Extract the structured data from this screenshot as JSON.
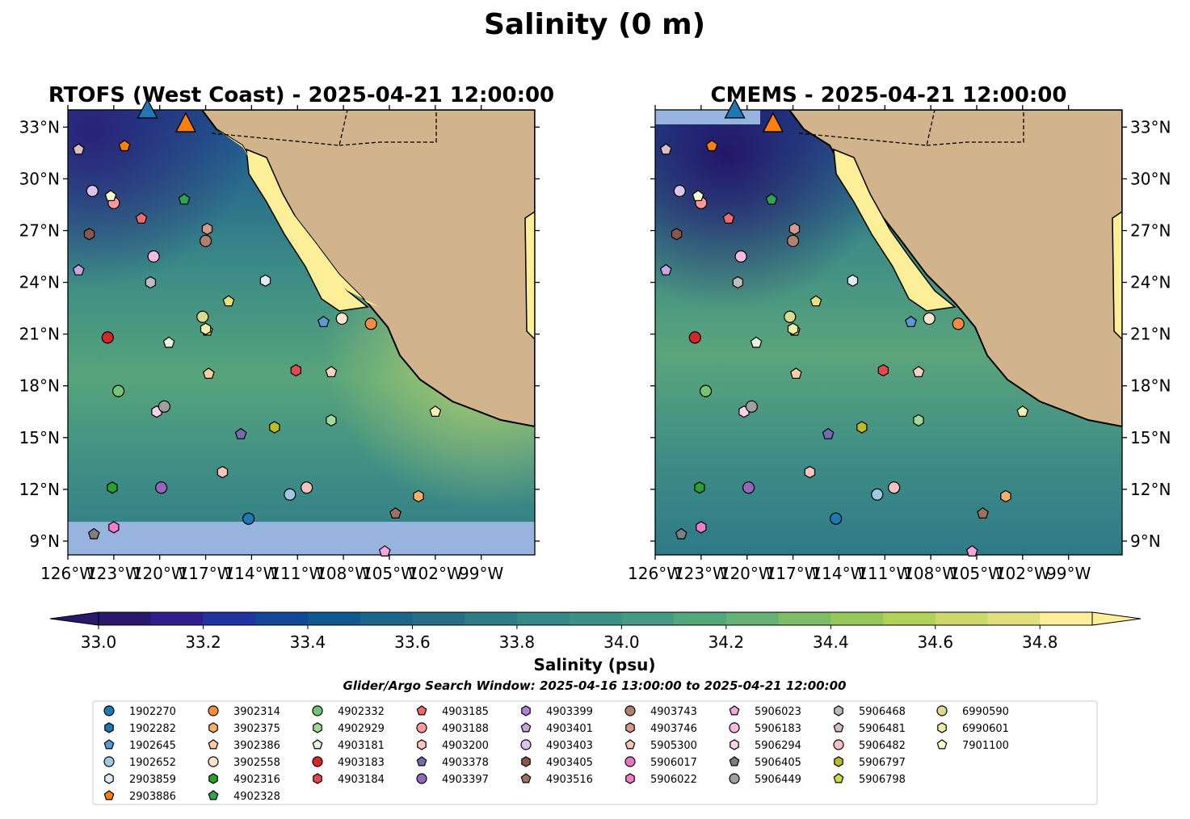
{
  "title": "Salinity (0 m)",
  "panels": [
    {
      "id": "rtofs",
      "title": "RTOFS (West Coast) - 2025-04-21 12:00:00"
    },
    {
      "id": "cmems",
      "title": "CMEMS - 2025-04-21 12:00:00"
    }
  ],
  "colorbar": {
    "label": "Salinity (psu)",
    "ticks": [
      "33.0",
      "33.2",
      "33.4",
      "33.6",
      "33.8",
      "34.0",
      "34.2",
      "34.4",
      "34.6",
      "34.8"
    ],
    "tick_values": [
      33.0,
      33.2,
      33.4,
      33.6,
      33.8,
      34.0,
      34.2,
      34.4,
      34.6,
      34.8
    ],
    "range": [
      33.0,
      34.9
    ],
    "step": 0.1,
    "extend": "both",
    "colormap": "haline",
    "colors": [
      "#2a186c",
      "#2f1f8e",
      "#1f34a1",
      "#124798",
      "#115790",
      "#1c658b",
      "#276f89",
      "#307b88",
      "#368887",
      "#3c9186",
      "#469b82",
      "#54a67c",
      "#66b174",
      "#7cbd66",
      "#95c75b",
      "#b0d15a",
      "#cad96a",
      "#e0df7e",
      "#fdef9a"
    ]
  },
  "search_window": "Glider/Argo Search Window: 2025-04-16 13:00:00 to 2025-04-21 12:00:00",
  "chart_data": {
    "type": "map",
    "map": {
      "lon_range": [
        -126,
        -95.5
      ],
      "lat_range": [
        8.2,
        34
      ],
      "lon_ticks": [
        "126°W",
        "123°W",
        "120°W",
        "117°W",
        "114°W",
        "111°W",
        "108°W",
        "105°W",
        "102°W",
        "99°W"
      ],
      "lon_values": [
        -126,
        -123,
        -120,
        -117,
        -114,
        -111,
        -108,
        -105,
        -102,
        -99
      ],
      "lat_ticks": [
        "9°N",
        "12°N",
        "15°N",
        "18°N",
        "21°N",
        "24°N",
        "27°N",
        "30°N",
        "33°N"
      ],
      "lat_values": [
        9,
        12,
        15,
        18,
        21,
        24,
        27,
        30,
        33
      ],
      "land_color": "#d2b48c",
      "no_data_color": "#97b4df"
    },
    "floats": [
      {
        "id": "1902270",
        "marker": "circle",
        "color": "#1f77b4",
        "lon": -114.2,
        "lat": 10.3
      },
      {
        "id": "1902282",
        "marker": "hexagon",
        "color": "#1f77b4",
        "lon": null,
        "lat": null
      },
      {
        "id": "1902645",
        "marker": "pentagon",
        "color": "#5b9bd5",
        "lon": -109.3,
        "lat": 21.7
      },
      {
        "id": "1902652",
        "marker": "circle",
        "color": "#9ecae1",
        "lon": -111.5,
        "lat": 11.7
      },
      {
        "id": "2903859",
        "marker": "hexagon",
        "color": "#deebf7",
        "lon": -113.1,
        "lat": 24.1
      },
      {
        "id": "2903886",
        "marker": "pentagon",
        "color": "#ff7f0e",
        "lon": -122.3,
        "lat": 31.9
      },
      {
        "id": "3902314",
        "marker": "circle",
        "color": "#fd8d3c",
        "lon": -106.2,
        "lat": 21.6
      },
      {
        "id": "3902375",
        "marker": "hexagon",
        "color": "#fdae6b",
        "lon": -103.1,
        "lat": 11.6
      },
      {
        "id": "3902386",
        "marker": "pentagon",
        "color": "#fdd0a2",
        "lon": -116.8,
        "lat": 18.7
      },
      {
        "id": "3902558",
        "marker": "circle",
        "color": "#fee6ce",
        "lon": -108.1,
        "lat": 21.9
      },
      {
        "id": "4902316",
        "marker": "hexagon",
        "color": "#2ca02c",
        "lon": -123.1,
        "lat": 12.1
      },
      {
        "id": "4902328",
        "marker": "pentagon",
        "color": "#31a354",
        "lon": -118.4,
        "lat": 28.8
      },
      {
        "id": "4902332",
        "marker": "circle",
        "color": "#74c476",
        "lon": -122.7,
        "lat": 17.7
      },
      {
        "id": "4902929",
        "marker": "hexagon",
        "color": "#a1d99b",
        "lon": -108.8,
        "lat": 16.0
      },
      {
        "id": "4903181",
        "marker": "pentagon",
        "color": "#e5f5e0",
        "lon": -119.4,
        "lat": 20.5
      },
      {
        "id": "4903183",
        "marker": "circle",
        "color": "#d62728",
        "lon": -123.4,
        "lat": 20.8
      },
      {
        "id": "4903184",
        "marker": "hexagon",
        "color": "#e34a4f",
        "lon": -111.1,
        "lat": 18.9
      },
      {
        "id": "4903185",
        "marker": "pentagon",
        "color": "#f16a6f",
        "lon": -121.2,
        "lat": 27.7
      },
      {
        "id": "4903188",
        "marker": "circle",
        "color": "#fb9a99",
        "lon": -123.0,
        "lat": 28.6
      },
      {
        "id": "4903200",
        "marker": "hexagon",
        "color": "#fcc5c0",
        "lon": -115.9,
        "lat": 13.0
      },
      {
        "id": "4903378",
        "marker": "pentagon",
        "color": "#756bb1",
        "lon": -114.7,
        "lat": 15.2
      },
      {
        "id": "4903397",
        "marker": "circle",
        "color": "#9467bd",
        "lon": -119.9,
        "lat": 12.1
      },
      {
        "id": "4903399",
        "marker": "hexagon",
        "color": "#b07fd0",
        "lon": null,
        "lat": null
      },
      {
        "id": "4903401",
        "marker": "pentagon",
        "color": "#c6a5e0",
        "lon": -125.3,
        "lat": 24.7
      },
      {
        "id": "4903403",
        "marker": "circle",
        "color": "#dcc3f0",
        "lon": -124.4,
        "lat": 29.3
      },
      {
        "id": "4903405",
        "marker": "hexagon",
        "color": "#8c564b",
        "lon": -124.6,
        "lat": 26.8
      },
      {
        "id": "4903516",
        "marker": "pentagon",
        "color": "#a0705f",
        "lon": -104.6,
        "lat": 10.6
      },
      {
        "id": "4903743",
        "marker": "circle",
        "color": "#b08070",
        "lon": -117.0,
        "lat": 26.4
      },
      {
        "id": "4903746",
        "marker": "hexagon",
        "color": "#d49a8a",
        "lon": -116.9,
        "lat": 27.1
      },
      {
        "id": "5905300",
        "marker": "pentagon",
        "color": "#f5c6b8",
        "lon": null,
        "lat": null
      },
      {
        "id": "5906017",
        "marker": "circle",
        "color": "#e377c2",
        "lon": null,
        "lat": null
      },
      {
        "id": "5906022",
        "marker": "hexagon",
        "color": "#f47cc8",
        "lon": -123.0,
        "lat": 9.8
      },
      {
        "id": "5906023",
        "marker": "pentagon",
        "color": "#f7a6d9",
        "lon": -105.3,
        "lat": 8.4
      },
      {
        "id": "5906183",
        "marker": "circle",
        "color": "#f9b9e0",
        "lon": -120.4,
        "lat": 25.5
      },
      {
        "id": "5906294",
        "marker": "hexagon",
        "color": "#fbd3ea",
        "lon": -120.2,
        "lat": 16.5
      },
      {
        "id": "5906405",
        "marker": "pentagon",
        "color": "#7f7f7f",
        "lon": -124.3,
        "lat": 9.4
      },
      {
        "id": "5906449",
        "marker": "circle",
        "color": "#a0a0a0",
        "lon": -119.7,
        "lat": 16.8
      },
      {
        "id": "5906468",
        "marker": "hexagon",
        "color": "#bdbdbd",
        "lon": -120.6,
        "lat": 24.0
      },
      {
        "id": "5906481",
        "marker": "pentagon",
        "color": "#d9c0c0",
        "lon": -125.3,
        "lat": 31.7
      },
      {
        "id": "5906482",
        "marker": "circle",
        "color": "#f4c0c0",
        "lon": -110.4,
        "lat": 12.1
      },
      {
        "id": "5906797",
        "marker": "hexagon",
        "color": "#bcbd22",
        "lon": -112.5,
        "lat": 15.6
      },
      {
        "id": "5906798",
        "marker": "pentagon",
        "color": "#cddb3b",
        "lon": -116.9,
        "lat": 21.2
      },
      {
        "id": "6990590",
        "marker": "circle",
        "color": "#dbdb8d",
        "lon": -117.2,
        "lat": 22.0
      },
      {
        "id": "6990601",
        "marker": "hexagon",
        "color": "#eef0a8",
        "lon": -117.0,
        "lat": 21.3
      },
      {
        "id": "7901100",
        "marker": "pentagon",
        "color": "#ffffd0",
        "lon": -123.2,
        "lat": 29.0
      }
    ],
    "extra_points": [
      {
        "marker": "pentagon",
        "color": "#e8e07a",
        "lon": -115.5,
        "lat": 22.9
      },
      {
        "marker": "pentagon",
        "color": "#f6f0b0",
        "lon": -102.0,
        "lat": 16.5
      },
      {
        "marker": "pentagon",
        "color": "#f8d2c0",
        "lon": -108.8,
        "lat": 18.8
      }
    ],
    "gliders": [
      {
        "id": "sp030-20250310T2101",
        "marker": "triangle",
        "color": "#1f77b4",
        "lon": -120.8,
        "lat": 34.0
      },
      {
        "id": "sp041-20250224T1815",
        "marker": "triangle",
        "color": "#ff7f0e",
        "lon": -118.3,
        "lat": 33.2
      }
    ]
  }
}
